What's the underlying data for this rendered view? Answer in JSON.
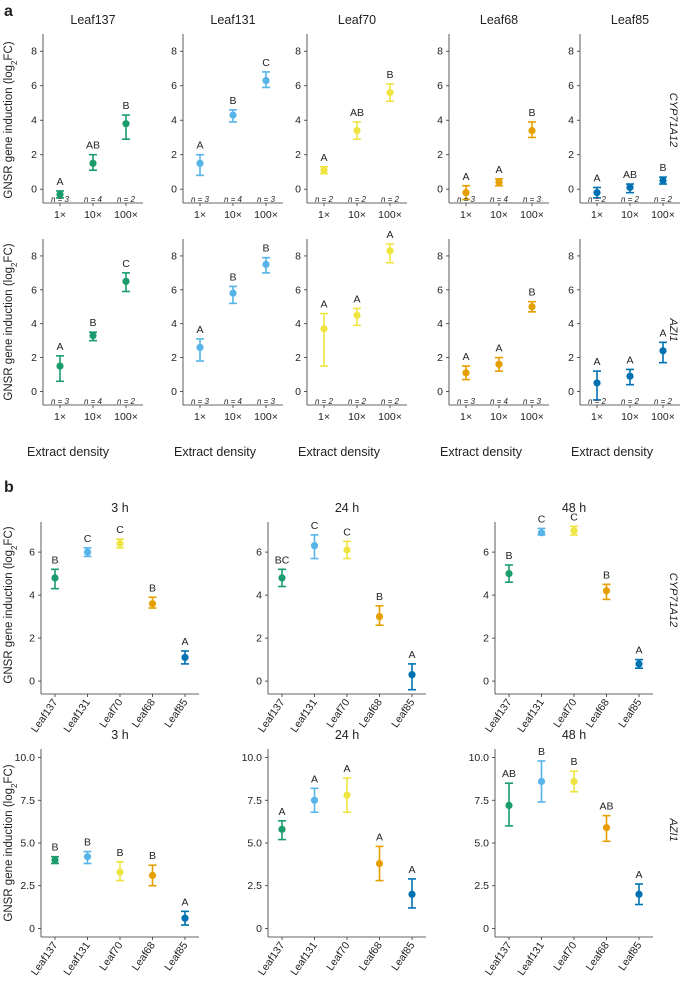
{
  "labels": {
    "panel_a": "a",
    "panel_b": "b",
    "ylabel_prefix": "GNSR gene induction (log",
    "ylabel_sub": "2",
    "ylabel_suffix": "FC)",
    "xlabel_a": "Extract density",
    "genes": [
      "CYP71A12",
      "AZI1"
    ]
  },
  "colors": {
    "Leaf137": "#1a9c6c",
    "Leaf131": "#56b4e9",
    "Leaf70": "#f0e442",
    "Leaf68": "#e69f00",
    "Leaf85": "#0072b2"
  },
  "chart_data": [
    {
      "panel": "a",
      "gene": "CYP71A12",
      "strain": "Leaf137",
      "type": "scatter",
      "categories": [
        "1×",
        "10×",
        "100×"
      ],
      "ylim": [
        -0.8,
        9
      ],
      "yticks": [
        0,
        2,
        4,
        6,
        8
      ],
      "values": [
        -0.3,
        1.5,
        3.8
      ],
      "lower": [
        -0.5,
        1.1,
        2.9
      ],
      "upper": [
        -0.1,
        2.0,
        4.3
      ],
      "letters": [
        "A",
        "AB",
        "B"
      ],
      "n": [
        "n = 3",
        "n = 4",
        "n = 2"
      ]
    },
    {
      "panel": "a",
      "gene": "CYP71A12",
      "strain": "Leaf131",
      "type": "scatter",
      "categories": [
        "1×",
        "10×",
        "100×"
      ],
      "ylim": [
        -0.8,
        9
      ],
      "yticks": [
        0,
        2,
        4,
        6,
        8
      ],
      "values": [
        1.5,
        4.3,
        6.3
      ],
      "lower": [
        0.8,
        3.9,
        5.9
      ],
      "upper": [
        2.0,
        4.6,
        6.8
      ],
      "letters": [
        "A",
        "B",
        "C"
      ],
      "n": [
        "n = 3",
        "n = 4",
        "n = 3"
      ]
    },
    {
      "panel": "a",
      "gene": "CYP71A12",
      "strain": "Leaf70",
      "type": "scatter",
      "categories": [
        "1×",
        "10×",
        "100×"
      ],
      "ylim": [
        -0.8,
        9
      ],
      "yticks": [
        0,
        2,
        4,
        6,
        8
      ],
      "values": [
        1.1,
        3.4,
        5.6
      ],
      "lower": [
        0.9,
        2.9,
        5.1
      ],
      "upper": [
        1.3,
        3.9,
        6.1
      ],
      "letters": [
        "A",
        "AB",
        "B"
      ],
      "n": [
        "n = 2",
        "n = 2",
        "n = 2"
      ]
    },
    {
      "panel": "a",
      "gene": "CYP71A12",
      "strain": "Leaf68",
      "type": "scatter",
      "categories": [
        "1×",
        "10×",
        "100×"
      ],
      "ylim": [
        -0.8,
        9
      ],
      "yticks": [
        0,
        2,
        4,
        6,
        8
      ],
      "values": [
        -0.2,
        0.4,
        3.4
      ],
      "lower": [
        -0.6,
        0.2,
        3.0
      ],
      "upper": [
        0.2,
        0.6,
        3.9
      ],
      "letters": [
        "A",
        "A",
        "B"
      ],
      "n": [
        "n = 3",
        "n = 4",
        "n = 3"
      ]
    },
    {
      "panel": "a",
      "gene": "CYP71A12",
      "strain": "Leaf85",
      "type": "scatter",
      "categories": [
        "1×",
        "10×",
        "100×"
      ],
      "ylim": [
        -0.8,
        9
      ],
      "yticks": [
        0,
        2,
        4,
        6,
        8
      ],
      "values": [
        -0.2,
        0.1,
        0.5
      ],
      "lower": [
        -0.5,
        -0.2,
        0.3
      ],
      "upper": [
        0.1,
        0.3,
        0.7
      ],
      "letters": [
        "A",
        "AB",
        "B"
      ],
      "n": [
        "n = 2",
        "n = 2",
        "n = 2"
      ]
    },
    {
      "panel": "a",
      "gene": "AZI1",
      "strain": "Leaf137",
      "type": "scatter",
      "categories": [
        "1×",
        "10×",
        "100×"
      ],
      "ylim": [
        -0.8,
        9
      ],
      "yticks": [
        0,
        2,
        4,
        6,
        8
      ],
      "values": [
        1.5,
        3.3,
        6.5
      ],
      "lower": [
        0.6,
        3.0,
        5.9
      ],
      "upper": [
        2.1,
        3.5,
        7.0
      ],
      "letters": [
        "A",
        "B",
        "C"
      ],
      "n": [
        "n = 3",
        "n = 4",
        "n = 2"
      ]
    },
    {
      "panel": "a",
      "gene": "AZI1",
      "strain": "Leaf131",
      "type": "scatter",
      "categories": [
        "1×",
        "10×",
        "100×"
      ],
      "ylim": [
        -0.8,
        9
      ],
      "yticks": [
        0,
        2,
        4,
        6,
        8
      ],
      "values": [
        2.6,
        5.8,
        7.5
      ],
      "lower": [
        1.8,
        5.2,
        7.0
      ],
      "upper": [
        3.1,
        6.2,
        7.9
      ],
      "letters": [
        "A",
        "B",
        "B"
      ],
      "n": [
        "n = 3",
        "n = 4",
        "n = 3"
      ]
    },
    {
      "panel": "a",
      "gene": "AZI1",
      "strain": "Leaf70",
      "type": "scatter",
      "categories": [
        "1×",
        "10×",
        "100×"
      ],
      "ylim": [
        -0.8,
        9
      ],
      "yticks": [
        0,
        2,
        4,
        6,
        8
      ],
      "values": [
        3.7,
        4.5,
        8.3
      ],
      "lower": [
        1.5,
        3.9,
        7.6
      ],
      "upper": [
        4.6,
        4.9,
        8.7
      ],
      "letters": [
        "A",
        "A",
        "A"
      ],
      "n": [
        "n = 2",
        "n = 2",
        "n = 2"
      ]
    },
    {
      "panel": "a",
      "gene": "AZI1",
      "strain": "Leaf68",
      "type": "scatter",
      "categories": [
        "1×",
        "10×",
        "100×"
      ],
      "ylim": [
        -0.8,
        9
      ],
      "yticks": [
        0,
        2,
        4,
        6,
        8
      ],
      "values": [
        1.1,
        1.6,
        5.0
      ],
      "lower": [
        0.7,
        1.2,
        4.7
      ],
      "upper": [
        1.5,
        2.0,
        5.3
      ],
      "letters": [
        "A",
        "A",
        "B"
      ],
      "n": [
        "n = 3",
        "n = 4",
        "n = 3"
      ]
    },
    {
      "panel": "a",
      "gene": "AZI1",
      "strain": "Leaf85",
      "type": "scatter",
      "categories": [
        "1×",
        "10×",
        "100×"
      ],
      "ylim": [
        -0.8,
        9
      ],
      "yticks": [
        0,
        2,
        4,
        6,
        8
      ],
      "values": [
        0.5,
        0.9,
        2.4
      ],
      "lower": [
        -0.5,
        0.4,
        1.7
      ],
      "upper": [
        1.2,
        1.3,
        2.9
      ],
      "letters": [
        "A",
        "A",
        "A"
      ],
      "n": [
        "n = 2",
        "n = 2",
        "n = 2"
      ]
    },
    {
      "panel": "b",
      "gene": "CYP71A12",
      "time": "3 h",
      "type": "scatter",
      "categories": [
        "Leaf137",
        "Leaf131",
        "Leaf70",
        "Leaf68",
        "Leaf85"
      ],
      "ylim": [
        -0.6,
        7.4
      ],
      "yticks": [
        0,
        2,
        4,
        6
      ],
      "tick_labels": [
        "0",
        "2",
        "4",
        "6"
      ],
      "values": [
        4.8,
        6.0,
        6.4,
        3.6,
        1.1
      ],
      "lower": [
        4.3,
        5.8,
        6.2,
        3.4,
        0.8
      ],
      "upper": [
        5.2,
        6.2,
        6.6,
        3.9,
        1.4
      ],
      "letters": [
        "B",
        "C",
        "C",
        "B",
        "A"
      ]
    },
    {
      "panel": "b",
      "gene": "CYP71A12",
      "time": "24 h",
      "type": "scatter",
      "categories": [
        "Leaf137",
        "Leaf131",
        "Leaf70",
        "Leaf68",
        "Leaf85"
      ],
      "ylim": [
        -0.6,
        7.4
      ],
      "yticks": [
        0,
        2,
        4,
        6
      ],
      "tick_labels": [
        "0",
        "2",
        "4",
        "6"
      ],
      "values": [
        4.8,
        6.3,
        6.1,
        3.0,
        0.3
      ],
      "lower": [
        4.4,
        5.7,
        5.7,
        2.6,
        -0.4
      ],
      "upper": [
        5.2,
        6.8,
        6.5,
        3.5,
        0.8
      ],
      "letters": [
        "BC",
        "C",
        "C",
        "B",
        "A"
      ]
    },
    {
      "panel": "b",
      "gene": "CYP71A12",
      "time": "48 h",
      "type": "scatter",
      "categories": [
        "Leaf137",
        "Leaf131",
        "Leaf70",
        "Leaf68",
        "Leaf85"
      ],
      "ylim": [
        -0.6,
        7.4
      ],
      "yticks": [
        0,
        2,
        4,
        6
      ],
      "tick_labels": [
        "0",
        "2",
        "4",
        "6"
      ],
      "values": [
        5.0,
        6.9,
        7.0,
        4.2,
        0.8
      ],
      "lower": [
        4.6,
        6.8,
        6.8,
        3.8,
        0.6
      ],
      "upper": [
        5.4,
        7.1,
        7.2,
        4.5,
        1.0
      ],
      "letters": [
        "B",
        "C",
        "C",
        "B",
        "A"
      ]
    },
    {
      "panel": "b",
      "gene": "AZI1",
      "time": "3 h",
      "type": "scatter",
      "categories": [
        "Leaf137",
        "Leaf131",
        "Leaf70",
        "Leaf68",
        "Leaf85"
      ],
      "ylim": [
        -0.5,
        10.5
      ],
      "yticks": [
        0,
        2.5,
        5,
        7.5,
        10
      ],
      "tick_labels": [
        "0",
        "2.5",
        "5.0",
        "7.5",
        "10.0"
      ],
      "values": [
        4.0,
        4.2,
        3.3,
        3.1,
        0.6
      ],
      "lower": [
        3.8,
        3.8,
        2.8,
        2.5,
        0.2
      ],
      "upper": [
        4.2,
        4.5,
        3.9,
        3.7,
        1.0
      ],
      "letters": [
        "B",
        "B",
        "B",
        "B",
        "A"
      ]
    },
    {
      "panel": "b",
      "gene": "AZI1",
      "time": "24 h",
      "type": "scatter",
      "categories": [
        "Leaf137",
        "Leaf131",
        "Leaf70",
        "Leaf68",
        "Leaf85"
      ],
      "ylim": [
        -0.5,
        10.5
      ],
      "yticks": [
        0,
        2.5,
        5,
        7.5,
        10
      ],
      "tick_labels": [
        "0",
        "2.5",
        "5.0",
        "7.5",
        "10.0"
      ],
      "values": [
        5.8,
        7.5,
        7.8,
        3.8,
        2.0
      ],
      "lower": [
        5.2,
        6.8,
        6.8,
        2.8,
        1.2
      ],
      "upper": [
        6.3,
        8.2,
        8.8,
        4.8,
        2.9
      ],
      "letters": [
        "A",
        "A",
        "A",
        "A",
        "A"
      ]
    },
    {
      "panel": "b",
      "gene": "AZI1",
      "time": "48 h",
      "type": "scatter",
      "categories": [
        "Leaf137",
        "Leaf131",
        "Leaf70",
        "Leaf68",
        "Leaf85"
      ],
      "ylim": [
        -0.5,
        10.5
      ],
      "yticks": [
        0,
        2.5,
        5,
        7.5,
        10
      ],
      "tick_labels": [
        "0",
        "2.5",
        "5.0",
        "7.5",
        "10.0"
      ],
      "values": [
        7.2,
        8.6,
        8.6,
        5.9,
        2.0
      ],
      "lower": [
        6.0,
        7.4,
        8.0,
        5.1,
        1.4
      ],
      "upper": [
        8.5,
        9.8,
        9.2,
        6.6,
        2.6
      ],
      "letters": [
        "AB",
        "B",
        "B",
        "AB",
        "A"
      ]
    }
  ]
}
